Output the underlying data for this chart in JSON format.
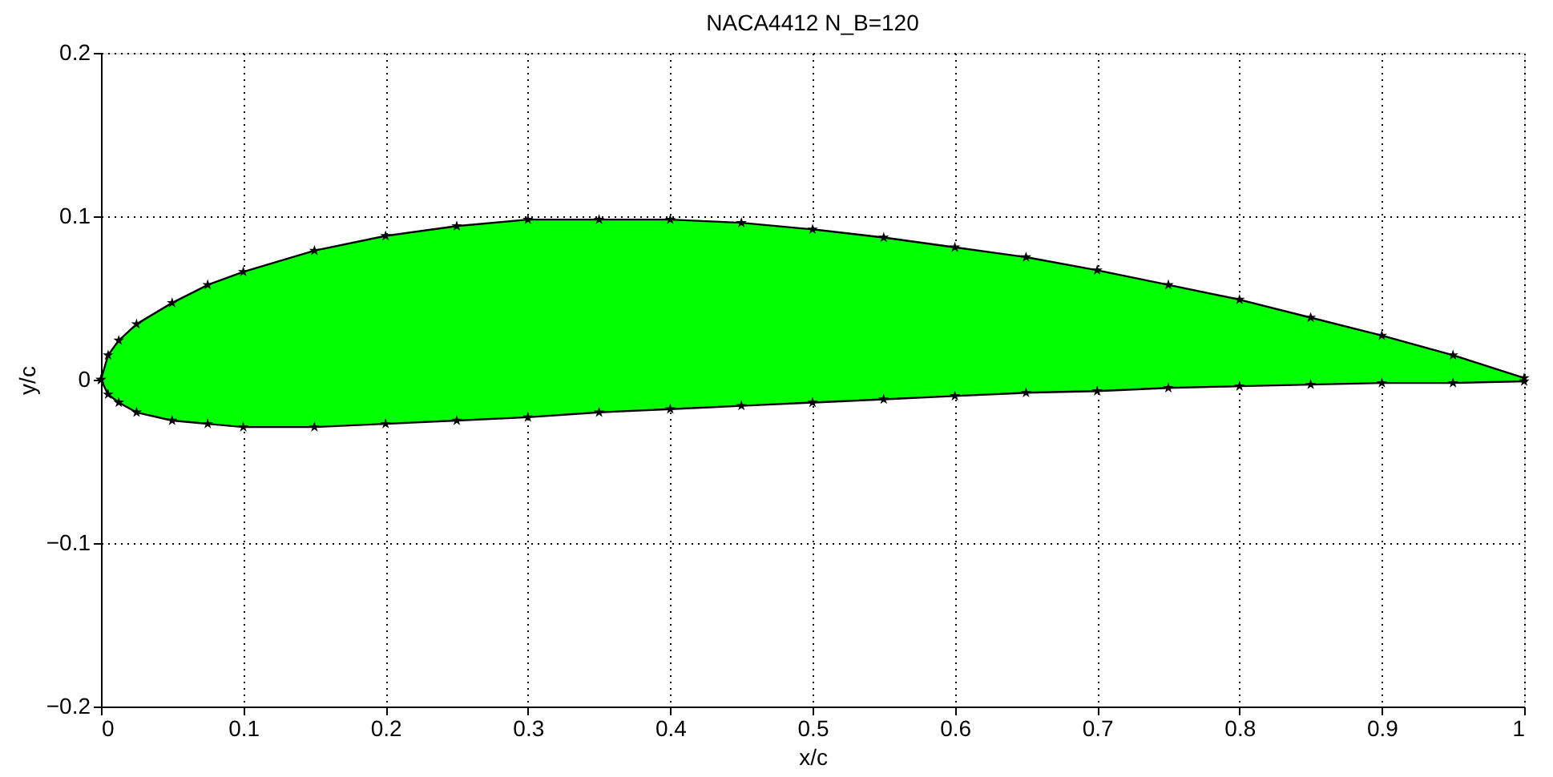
{
  "chart_data": {
    "type": "line",
    "title": "NACA4412 N_B=120",
    "xlabel": "x/c",
    "ylabel": "y/c",
    "xlim": [
      0,
      1
    ],
    "xticks": [
      0,
      0.1,
      0.2,
      0.3,
      0.4,
      0.5,
      0.6,
      0.7,
      0.8,
      0.9,
      1
    ],
    "ylim": [
      -0.2,
      0.2
    ],
    "yticks": [
      -0.2,
      -0.1,
      0,
      0.1,
      0.2
    ],
    "grid": true,
    "marker": "star",
    "x": [
      0,
      0.005,
      0.0125,
      0.025,
      0.05,
      0.075,
      0.1,
      0.15,
      0.2,
      0.25,
      0.3,
      0.35,
      0.4,
      0.45,
      0.5,
      0.55,
      0.6,
      0.65,
      0.7,
      0.75,
      0.8,
      0.85,
      0.9,
      0.95,
      1.0
    ],
    "series": [
      {
        "color": "#000000",
        "values": [
          0,
          0.015,
          0.024,
          0.034,
          0.047,
          0.058,
          0.066,
          0.079,
          0.088,
          0.094,
          0.098,
          0.098,
          0.098,
          0.096,
          0.092,
          0.087,
          0.081,
          0.075,
          0.067,
          0.058,
          0.049,
          0.038,
          0.027,
          0.015,
          0.001
        ],
        "lower": [
          0,
          -0.009,
          -0.014,
          -0.02,
          -0.025,
          -0.027,
          -0.029,
          -0.029,
          -0.027,
          -0.025,
          -0.023,
          -0.02,
          -0.018,
          -0.016,
          -0.014,
          -0.012,
          -0.01,
          -0.008,
          -0.007,
          -0.005,
          -0.004,
          -0.003,
          -0.002,
          -0.002,
          -0.001
        ],
        "upper": [
          0,
          0.015,
          0.024,
          0.034,
          0.047,
          0.058,
          0.066,
          0.079,
          0.088,
          0.094,
          0.098,
          0.098,
          0.098,
          0.096,
          0.092,
          0.087,
          0.081,
          0.075,
          0.067,
          0.058,
          0.049,
          0.038,
          0.027,
          0.015,
          0.001
        ]
      },
      {
        "color": "#000000",
        "values": [
          0,
          -0.009,
          -0.014,
          -0.02,
          -0.025,
          -0.027,
          -0.029,
          -0.029,
          -0.027,
          -0.025,
          -0.023,
          -0.02,
          -0.018,
          -0.016,
          -0.014,
          -0.012,
          -0.01,
          -0.008,
          -0.007,
          -0.005,
          -0.004,
          -0.003,
          -0.002,
          -0.002,
          -0.001
        ]
      }
    ]
  }
}
